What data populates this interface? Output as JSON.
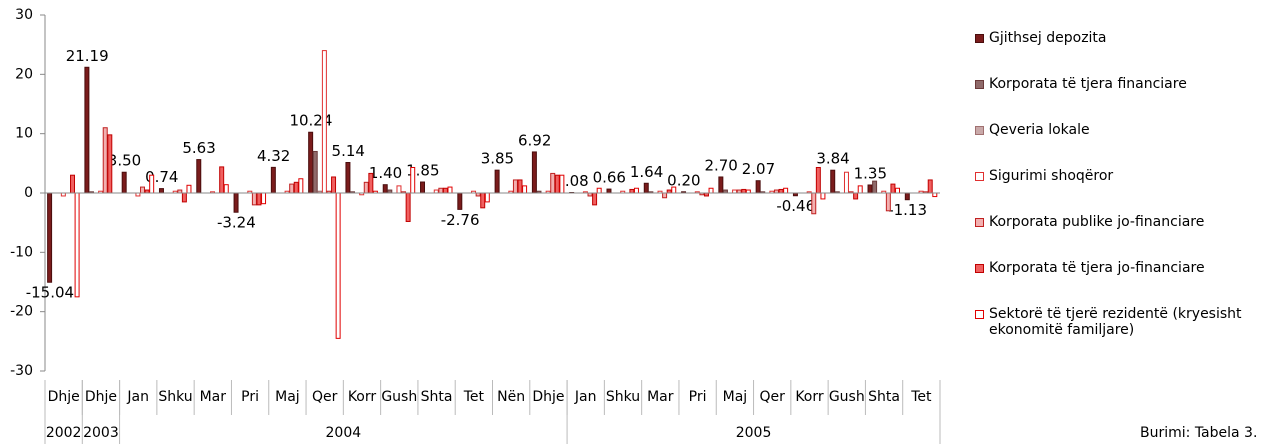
{
  "chart_data": {
    "type": "bar",
    "categories": [
      "Dhje",
      "Dhje",
      "Jan",
      "Shku",
      "Mar",
      "Pri",
      "Maj",
      "Qer",
      "Korr",
      "Gush",
      "Shta",
      "Tet",
      "Nën",
      "Dhje",
      "Jan",
      "Shku",
      "Mar",
      "Pri",
      "Maj",
      "Qer",
      "Korr",
      "Gush",
      "Shta",
      "Tet"
    ],
    "categories_outer": [
      "2002",
      "2003",
      "2004",
      null,
      null,
      null,
      null,
      null,
      null,
      null,
      null,
      null,
      null,
      null,
      "2005",
      null,
      null,
      null,
      null,
      null,
      null,
      null,
      null,
      null
    ],
    "ylim": [
      -30,
      30
    ],
    "yticks": [
      -30,
      -20,
      -10,
      0,
      10,
      20,
      30
    ],
    "series": [
      {
        "name": "Gjithsej depozita",
        "color": "#7a1c1c",
        "edgecolor": "#4a0d0d",
        "values": [
          -15.04,
          21.19,
          3.5,
          0.74,
          5.63,
          -3.24,
          4.32,
          10.24,
          5.14,
          1.4,
          1.85,
          -2.76,
          3.85,
          6.92,
          0.08,
          0.66,
          1.64,
          0.2,
          2.7,
          2.07,
          -0.46,
          3.84,
          1.35,
          -1.13
        ],
        "value_labels": [
          "-15.04",
          "21.19",
          "3.50",
          "0.74",
          "5.63",
          "-3.24",
          "4.32",
          "10.24",
          "5.14",
          "1.40",
          "1.85",
          "-2.76",
          "3.85",
          "6.92",
          "0.08",
          "0.66",
          "1.64",
          "0.20",
          "2.70",
          "2.07",
          "-0.46",
          "3.84",
          "1.35",
          "-1.13"
        ]
      },
      {
        "name": "Korporata të tjera financiare",
        "color": "#8f6a6a",
        "edgecolor": "#6b3a3a",
        "values": [
          0,
          0.2,
          0,
          0,
          0,
          0,
          0,
          7,
          0.2,
          0.5,
          0,
          0,
          0,
          0.3,
          0,
          0,
          0.2,
          0,
          0.5,
          0.2,
          0,
          0.2,
          2,
          0
        ]
      },
      {
        "name": "Qeveria lokale",
        "color": "#c9a9a9",
        "edgecolor": "#a07070",
        "values": [
          0,
          0,
          0,
          0,
          0,
          0,
          0,
          0.3,
          0,
          0,
          0,
          0,
          0,
          0,
          0,
          0,
          0,
          0,
          0,
          0,
          0,
          0,
          0,
          0
        ]
      },
      {
        "name": "Sigurimi shoqëror",
        "color": "#ffffff",
        "edgecolor": "#e03030",
        "values": [
          -0.5,
          0.3,
          -0.5,
          0.3,
          0.2,
          0.3,
          0.3,
          24,
          -0.3,
          1.2,
          0.5,
          0.3,
          0.3,
          0.3,
          0.2,
          0.3,
          0.3,
          0.2,
          0.5,
          0.3,
          0.2,
          3.5,
          0.3,
          0.3
        ]
      },
      {
        "name": "Korporata publike jo-financiare",
        "color": "#f2b0b0",
        "edgecolor": "#c02020",
        "values": [
          0,
          11,
          1,
          0.5,
          0,
          -2,
          1.5,
          0.3,
          1.8,
          0.2,
          0.8,
          -0.5,
          2.2,
          3.3,
          -0.5,
          0,
          -0.8,
          -0.3,
          0.5,
          0.5,
          -3.5,
          0.2,
          -3,
          0.2
        ]
      },
      {
        "name": "Korporata të tjera jo-financiare",
        "color": "#f06060",
        "edgecolor": "#c00000",
        "values": [
          3,
          9.8,
          0.5,
          -1.5,
          4.4,
          -2,
          1.8,
          2.7,
          3.3,
          -4.8,
          0.8,
          -2.5,
          2.2,
          3,
          -2,
          0.6,
          0.5,
          -0.5,
          0.6,
          0.6,
          4.3,
          -1,
          1.5,
          2.2
        ]
      },
      {
        "name": "Sektorë të tjerë rezidentë (kryesisht ekonomitë familjare)",
        "color": "#ffffff",
        "edgecolor": "#e00000",
        "values": [
          -17.5,
          0,
          3,
          1.3,
          1.4,
          -1.8,
          2.4,
          -24.5,
          0.3,
          4.3,
          1,
          -1.5,
          1.2,
          3,
          0.8,
          0.8,
          1,
          0.8,
          0.5,
          0.8,
          -1,
          1.2,
          0.8,
          -0.6
        ]
      }
    ],
    "source": "Burimi: Tabela 3."
  }
}
